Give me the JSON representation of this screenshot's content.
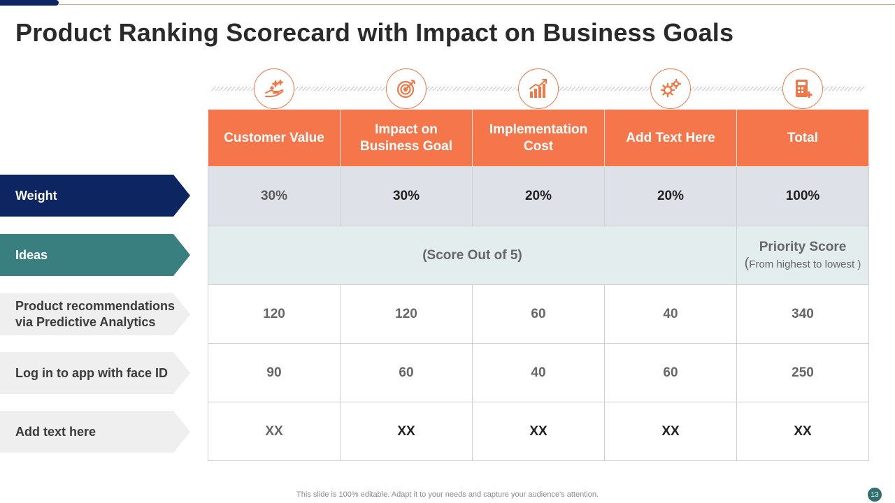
{
  "slide": {
    "title": "Product Ranking Scorecard with Impact on Business Goals",
    "footer_note": "This slide is 100% editable. Adapt it to your needs and capture your audience's attention.",
    "page_number": "13"
  },
  "colors": {
    "accent_orange": "#f5764a",
    "navy": "#0d2560",
    "teal": "#3a7f80",
    "weight_row_bg": "#dfe1e8",
    "note_row_bg": "#e3edee"
  },
  "header_icons": [
    "hand-sparkle-icon",
    "target-icon",
    "growth-chart-icon",
    "gears-icon",
    "calculator-icon"
  ],
  "columns": [
    "Customer Value",
    "Impact on Business Goal",
    "Implementation Cost",
    "Add Text Here",
    "Total"
  ],
  "row_labels": {
    "weight": "Weight",
    "ideas": "Ideas",
    "idea_1": "Product recommendations via Predictive Analytics",
    "idea_2": "Log in to app with face ID",
    "idea_3": "Add text here"
  },
  "weights": [
    "30%",
    "30%",
    "20%",
    "20%",
    "100%"
  ],
  "score_note": "(Score Out of 5)",
  "priority_score": {
    "heading": "Priority  Score",
    "open_paren": "(",
    "subtext": "From highest to lowest )"
  },
  "rows": [
    [
      "120",
      "120",
      "60",
      "40",
      "340"
    ],
    [
      "90",
      "60",
      "40",
      "60",
      "250"
    ],
    [
      "XX",
      "XX",
      "XX",
      "XX",
      "XX"
    ]
  ]
}
